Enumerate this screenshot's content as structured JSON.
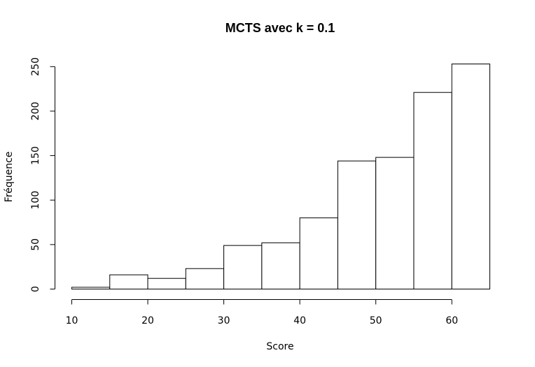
{
  "chart_data": {
    "type": "bar",
    "title": "MCTS avec k = 0.1",
    "xlabel": "Score",
    "ylabel": "Fréquence",
    "bins": [
      {
        "from": 10,
        "to": 15,
        "count": 2
      },
      {
        "from": 15,
        "to": 20,
        "count": 16
      },
      {
        "from": 20,
        "to": 25,
        "count": 12
      },
      {
        "from": 25,
        "to": 30,
        "count": 23
      },
      {
        "from": 30,
        "to": 35,
        "count": 49
      },
      {
        "from": 35,
        "to": 40,
        "count": 52
      },
      {
        "from": 40,
        "to": 45,
        "count": 80
      },
      {
        "from": 45,
        "to": 50,
        "count": 144
      },
      {
        "from": 50,
        "to": 55,
        "count": 148
      },
      {
        "from": 55,
        "to": 60,
        "count": 221
      },
      {
        "from": 60,
        "to": 65,
        "count": 253
      }
    ],
    "xticks": [
      10,
      20,
      30,
      40,
      50,
      60
    ],
    "yticks": [
      0,
      50,
      100,
      150,
      200,
      250
    ],
    "xlim": [
      10,
      65
    ],
    "ylim": [
      0,
      253
    ],
    "grid": false,
    "legend": "none"
  }
}
